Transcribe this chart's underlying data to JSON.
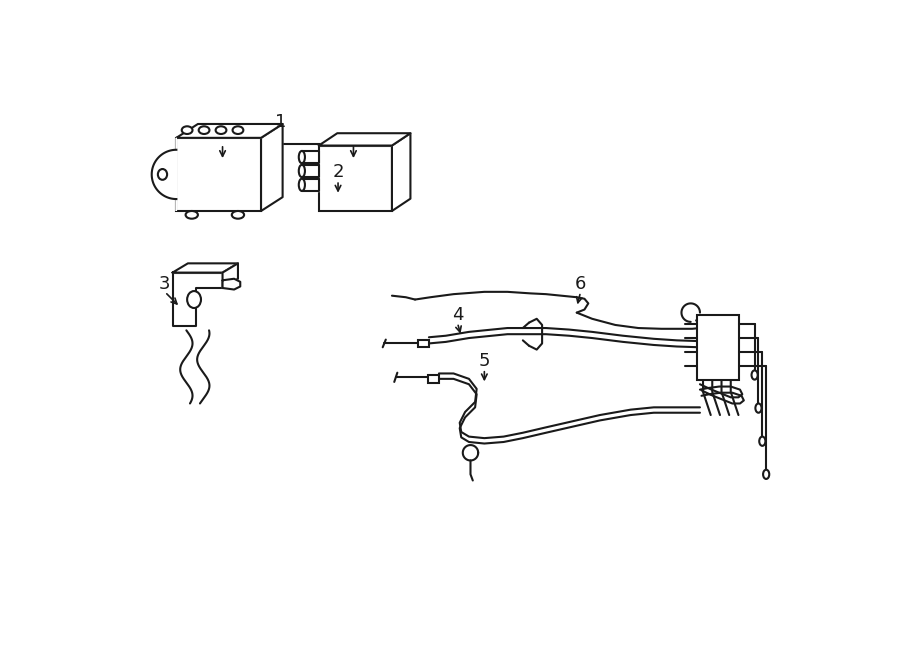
{
  "background_color": "#ffffff",
  "line_color": "#1a1a1a",
  "text_color": "#1a1a1a",
  "figsize": [
    9.0,
    6.61
  ],
  "dpi": 100,
  "lw": 1.5
}
